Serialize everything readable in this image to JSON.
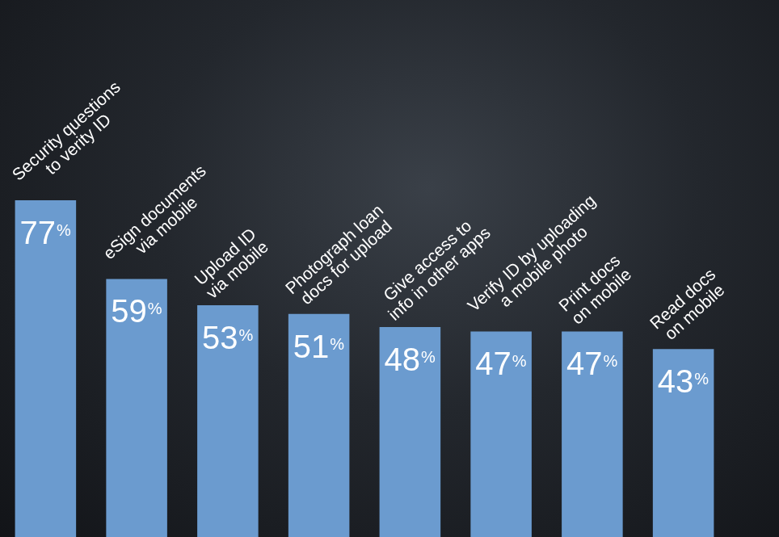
{
  "chart_data": {
    "type": "bar",
    "categories": [
      "Security questions to verity ID",
      "eSign documents via mobile",
      "Upload ID via mobile",
      "Photograph loan docs for upload",
      "Give access to info in other apps",
      "Verify ID by uploading a mobile photo",
      "Print docs on mobile",
      "Read docs on mobile"
    ],
    "values": [
      77,
      59,
      53,
      51,
      48,
      47,
      47,
      43
    ],
    "value_labels": [
      "77%",
      "59%",
      "53%",
      "51%",
      "48%",
      "47%",
      "47%",
      "43%"
    ],
    "color": "#6b9bcf",
    "ylim": [
      0,
      77
    ],
    "grid": false,
    "tick_labels": false,
    "data_labels": true
  }
}
